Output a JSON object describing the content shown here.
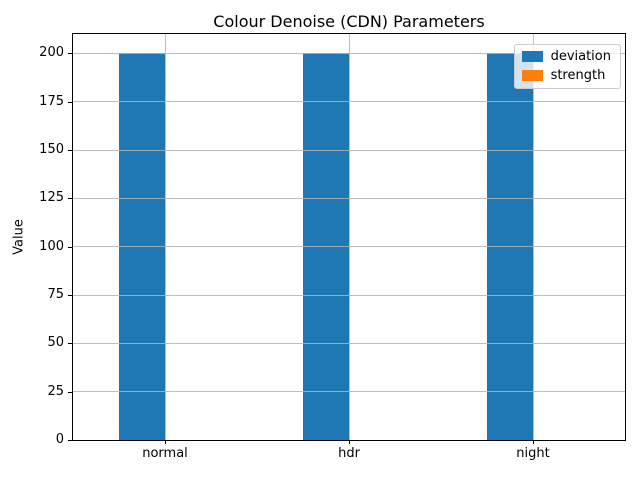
{
  "figure": {
    "title": "Colour Denoise (CDN) Parameters"
  },
  "chart_data": {
    "type": "bar",
    "title": "Colour Denoise (CDN) Parameters",
    "categories": [
      "normal",
      "hdr",
      "night"
    ],
    "series": [
      {
        "name": "deviation",
        "values": [
          200,
          200,
          200
        ],
        "color": "#1f77b4"
      },
      {
        "name": "strength",
        "values": [
          0,
          0,
          0
        ],
        "color": "#ff7f0e"
      }
    ],
    "xlabel": "",
    "ylabel": "Value",
    "ylim": [
      0,
      210
    ],
    "yticks": [
      0,
      25,
      50,
      75,
      100,
      125,
      150,
      175,
      200
    ],
    "bar_width": 0.25,
    "grid": true,
    "legend_position": "upper right"
  }
}
